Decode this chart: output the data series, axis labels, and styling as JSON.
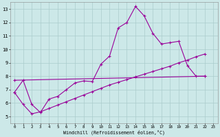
{
  "xlabel": "Windchill (Refroidissement éolien,°C)",
  "bg_color": "#cce8e8",
  "line_color": "#990099",
  "grid_color": "#aacccc",
  "xlim": [
    -0.5,
    23.5
  ],
  "ylim": [
    4.5,
    13.5
  ],
  "xticks": [
    0,
    1,
    2,
    3,
    4,
    5,
    6,
    7,
    8,
    9,
    10,
    11,
    12,
    13,
    14,
    15,
    16,
    17,
    18,
    19,
    20,
    21,
    22,
    23
  ],
  "yticks": [
    5,
    6,
    7,
    8,
    9,
    10,
    11,
    12,
    13
  ],
  "line1_x": [
    0,
    1,
    2,
    3,
    4,
    5,
    6,
    7,
    8,
    9,
    10,
    11,
    12,
    13,
    14,
    15,
    16,
    17,
    18,
    19,
    20,
    21,
    22
  ],
  "line1_y": [
    6.8,
    7.7,
    5.9,
    5.3,
    6.3,
    6.5,
    7.0,
    7.5,
    7.65,
    7.6,
    8.9,
    9.5,
    11.6,
    12.0,
    13.2,
    12.5,
    11.2,
    10.4,
    10.5,
    10.6,
    8.8,
    8.0,
    8.0
  ],
  "line2_x": [
    0,
    22
  ],
  "line2_y": [
    7.7,
    8.0
  ],
  "line3_x": [
    0,
    1,
    2,
    3,
    4,
    5,
    6,
    7,
    8,
    9,
    10,
    11,
    12,
    13,
    14,
    15,
    16,
    17,
    18,
    19,
    20,
    21,
    22
  ],
  "line3_y": [
    6.8,
    5.9,
    5.2,
    5.35,
    5.6,
    5.85,
    6.1,
    6.35,
    6.6,
    6.85,
    7.1,
    7.35,
    7.55,
    7.75,
    7.95,
    8.15,
    8.35,
    8.55,
    8.75,
    9.0,
    9.2,
    9.45,
    9.65
  ]
}
